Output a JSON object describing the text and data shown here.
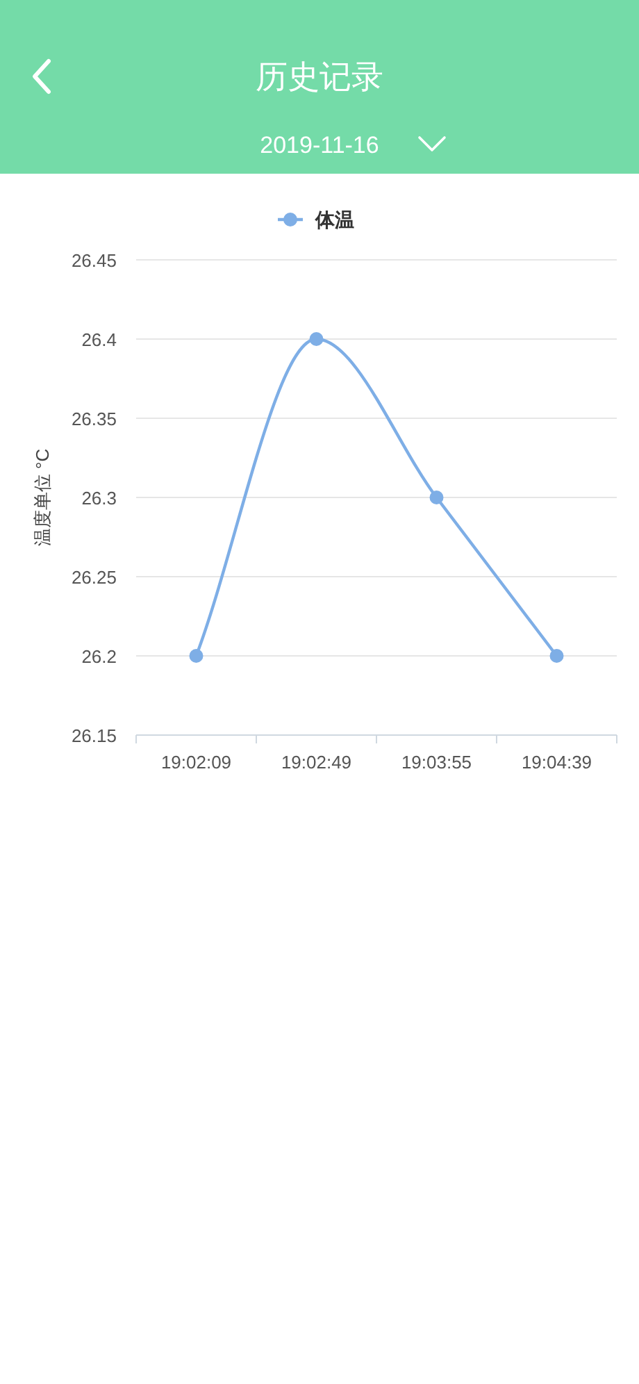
{
  "chart_data": {
    "type": "line",
    "title": "历史记录",
    "subtitle": "2019-11-16",
    "ylabel": "温度单位 °C",
    "categories": [
      "19:02:09",
      "19:02:49",
      "19:03:55",
      "19:04:39"
    ],
    "series": [
      {
        "name": "体温",
        "color": "#7eaee6",
        "values": [
          26.2,
          26.4,
          26.3,
          26.2
        ]
      }
    ],
    "ylim": [
      26.15,
      26.45
    ],
    "yticks": [
      26.15,
      26.2,
      26.25,
      26.3,
      26.35,
      26.4,
      26.45
    ],
    "grid": "y",
    "legend": "top",
    "marker": "circle",
    "line_style": "solid"
  }
}
